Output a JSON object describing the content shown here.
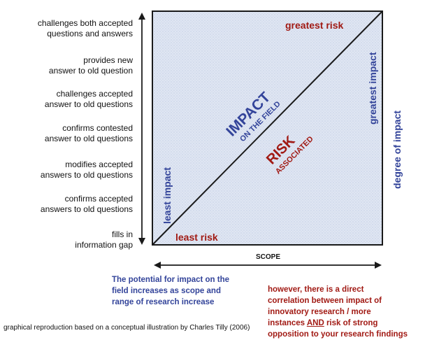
{
  "levels": [
    {
      "label": "challenges both accepted\nquestions and answers"
    },
    {
      "label": "provides new \nanswer to old question"
    },
    {
      "label": "challenges accepted\nanswer to old questions"
    },
    {
      "label": "confirms contested \nanswer to old questions"
    },
    {
      "label": "modifies accepted\nanswers to old questions"
    },
    {
      "label": "confirms accepted\nanswers to old questions"
    },
    {
      "label": "fills in\ninformation gap"
    }
  ],
  "diagram": {
    "greatest_risk": "greatest risk",
    "least_risk": "least risk",
    "least_impact": "least impact",
    "greatest_impact": "greatest impact",
    "impact_title": "IMPACT",
    "impact_sub": "ON THE FIELD",
    "risk_title": "RISK",
    "risk_sub": "ASSOCIATED",
    "scope_label": "SCOPE",
    "degree_label": "degree of impact"
  },
  "notes": {
    "impact_note": "The potential for impact on the\nfield increases as scope and\nrange of research increase",
    "risk_note": "however, there is a direct\ncorrelation between impact of\ninnovatory research / more\ninstances AND risk of strong\nopposition to your research findings",
    "credit": "graphical reproduction based on a conceptual illustration by Charles Tilly (2006)"
  },
  "colors": {
    "blue": "#33449a",
    "red": "#a11a14",
    "square_fill": "#dfe6f3",
    "border": "#1a1a1a"
  }
}
